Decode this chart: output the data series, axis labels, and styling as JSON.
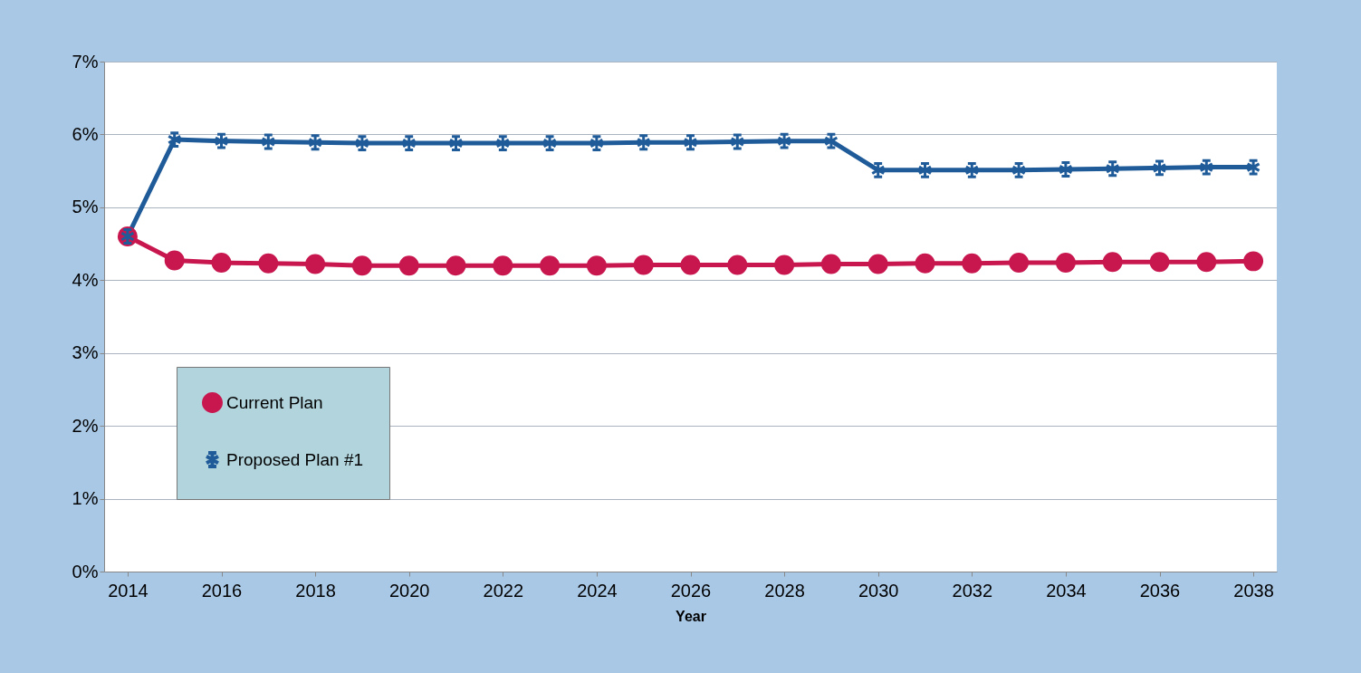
{
  "chart_data": {
    "type": "line",
    "xlabel": "Year",
    "x": [
      2014,
      2015,
      2016,
      2017,
      2018,
      2019,
      2020,
      2021,
      2022,
      2023,
      2024,
      2025,
      2026,
      2027,
      2028,
      2029,
      2030,
      2031,
      2032,
      2033,
      2034,
      2035,
      2036,
      2037,
      2038
    ],
    "series": [
      {
        "name": "Current Plan",
        "color": "#c8174f",
        "marker": "circle",
        "values": [
          4.6,
          4.27,
          4.24,
          4.23,
          4.22,
          4.2,
          4.2,
          4.2,
          4.2,
          4.2,
          4.2,
          4.21,
          4.21,
          4.21,
          4.21,
          4.22,
          4.22,
          4.23,
          4.23,
          4.24,
          4.24,
          4.25,
          4.25,
          4.25,
          4.26
        ]
      },
      {
        "name": "Proposed Plan #1",
        "color": "#1f5b99",
        "marker": "cross",
        "values": [
          4.6,
          5.93,
          5.91,
          5.9,
          5.89,
          5.88,
          5.88,
          5.88,
          5.88,
          5.88,
          5.88,
          5.89,
          5.89,
          5.9,
          5.91,
          5.91,
          5.51,
          5.51,
          5.51,
          5.51,
          5.52,
          5.53,
          5.54,
          5.55,
          5.55
        ]
      }
    ],
    "xlim": [
      2013.5,
      2038.5
    ],
    "xticks": [
      2014,
      2016,
      2018,
      2020,
      2022,
      2024,
      2026,
      2028,
      2030,
      2032,
      2034,
      2036,
      2038
    ],
    "ylim": [
      0,
      7
    ],
    "yticks": [
      {
        "value": 0,
        "label": "0%"
      },
      {
        "value": 1,
        "label": "1%"
      },
      {
        "value": 2,
        "label": "2%"
      },
      {
        "value": 3,
        "label": "3%"
      },
      {
        "value": 4,
        "label": "4%"
      },
      {
        "value": 5,
        "label": "5%"
      },
      {
        "value": 6,
        "label": "6%"
      },
      {
        "value": 7,
        "label": "7%"
      }
    ],
    "grid": "y",
    "legend": "bottom left",
    "line_style": "solid"
  }
}
